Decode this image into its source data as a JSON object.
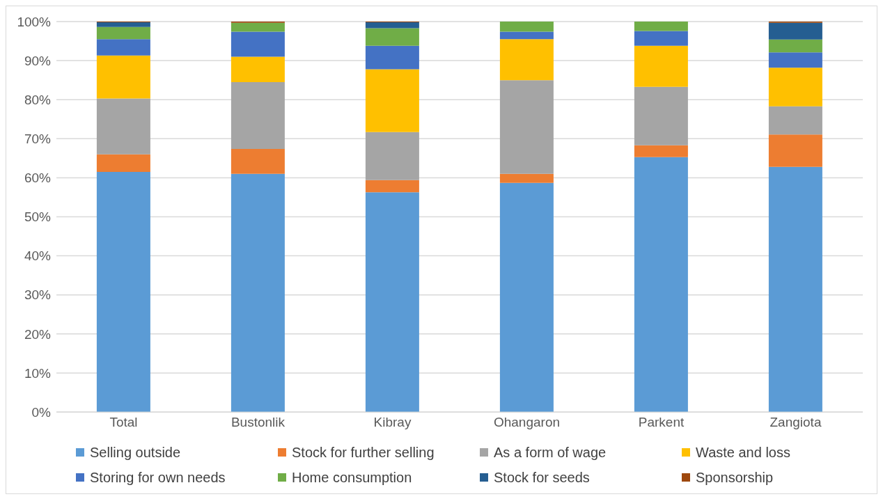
{
  "chart_data": {
    "type": "bar",
    "stacked": true,
    "categories": [
      "Total",
      "Bustonlik",
      "Kibray",
      "Ohangaron",
      "Parkent",
      "Zangiota"
    ],
    "series": [
      {
        "name": "Selling outside",
        "color": "#5b9bd5",
        "values": [
          61.5,
          61.0,
          56.3,
          58.7,
          65.3,
          62.8
        ]
      },
      {
        "name": "Stock for further selling",
        "color": "#ed7d31",
        "values": [
          4.5,
          6.4,
          3.1,
          2.3,
          3.0,
          8.3
        ]
      },
      {
        "name": "As a form of wage",
        "color": "#a5a5a5",
        "values": [
          14.3,
          17.1,
          12.3,
          24.0,
          15.0,
          7.2
        ]
      },
      {
        "name": "Waste and loss",
        "color": "#ffc000",
        "values": [
          11.0,
          6.5,
          16.1,
          10.5,
          10.5,
          9.9
        ]
      },
      {
        "name": "Storing for own needs",
        "color": "#4472c4",
        "values": [
          4.2,
          6.4,
          6.0,
          1.9,
          3.8,
          3.9
        ]
      },
      {
        "name": "Home consumption",
        "color": "#70ad47",
        "values": [
          3.1,
          2.3,
          4.5,
          2.6,
          2.4,
          3.3
        ]
      },
      {
        "name": "Stock for seeds",
        "color": "#255e91",
        "values": [
          1.2,
          0,
          1.5,
          0,
          0,
          4.3
        ]
      },
      {
        "name": "Sponsorship",
        "color": "#9e480e",
        "values": [
          0.2,
          0.3,
          0.2,
          0,
          0,
          0.3
        ]
      }
    ],
    "ylim": [
      0,
      100
    ],
    "yticks": [
      {
        "value": 0,
        "label": "0%"
      },
      {
        "value": 10,
        "label": "10%"
      },
      {
        "value": 20,
        "label": "20%"
      },
      {
        "value": 30,
        "label": "30%"
      },
      {
        "value": 40,
        "label": "40%"
      },
      {
        "value": 50,
        "label": "50%"
      },
      {
        "value": 60,
        "label": "60%"
      },
      {
        "value": 70,
        "label": "70%"
      },
      {
        "value": 80,
        "label": "80%"
      },
      {
        "value": 90,
        "label": "90%"
      },
      {
        "value": 100,
        "label": "100%"
      }
    ],
    "grid": "y",
    "legend": "bottom"
  }
}
